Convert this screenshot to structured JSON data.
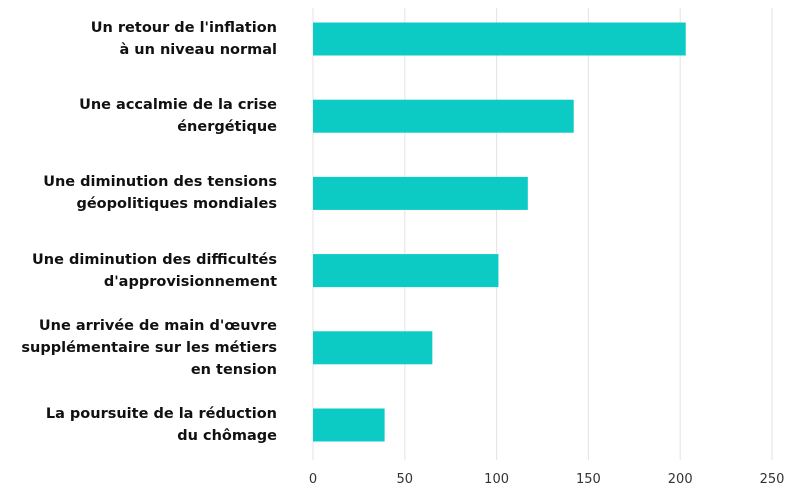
{
  "chart_data": {
    "type": "barh",
    "categories": [
      "Un retour de l'inflation\nà un niveau normal",
      "Une accalmie de la crise\nénergétique",
      "Une diminution des tensions\ngéopolitiques mondiales",
      "Une diminution des difficultés\nd'approvisionnement",
      "Une arrivée de main d'œuvre\nsupplémentaire sur les métiers\nen tension",
      "La poursuite de la réduction\ndu chômage"
    ],
    "values": [
      203,
      142,
      117,
      101,
      65,
      39
    ],
    "color": "#0ccac4",
    "xlim": [
      0,
      250
    ],
    "xticks": [
      0,
      50,
      100,
      150,
      200,
      250
    ],
    "grid": true
  }
}
